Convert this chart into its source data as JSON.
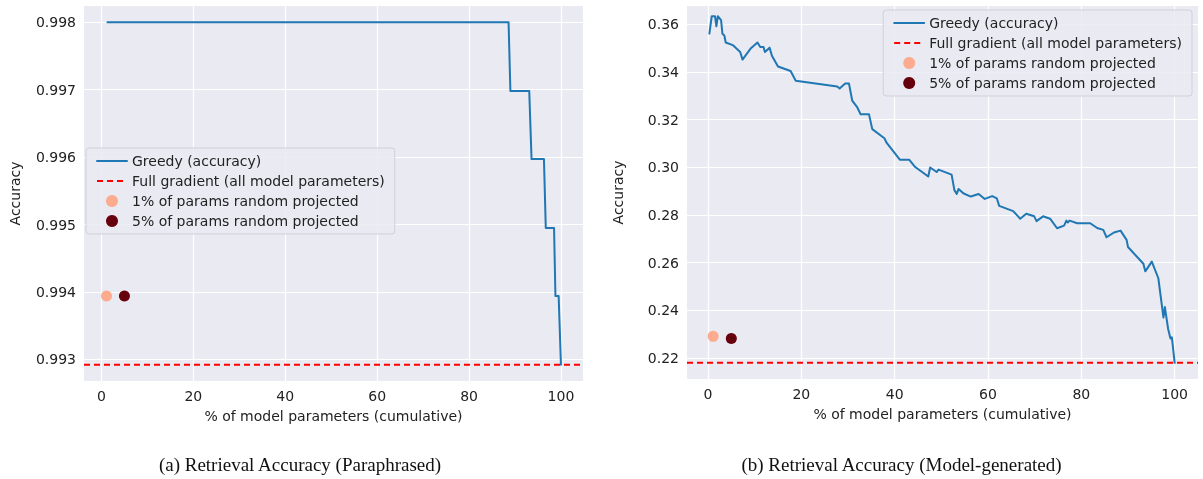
{
  "chart_data": [
    {
      "type": "line",
      "title": "(a) Retrieval Accuracy (Paraphrased)",
      "xlabel": "% of model parameters (cumulative)",
      "ylabel": "Accuracy",
      "xlim": [
        -3.8,
        104.8
      ],
      "xticks": [
        0,
        20,
        40,
        60,
        80,
        100
      ],
      "ylim": [
        0.99268,
        0.99824
      ],
      "yticks": [
        0.993,
        0.994,
        0.995,
        0.996,
        0.997,
        0.998
      ],
      "grid": true,
      "legend": "center left",
      "series": [
        {
          "name": "Greedy (accuracy)",
          "color": "#1f77b4",
          "marker": "none",
          "line_style": "solid",
          "x": [
            1.3,
            88.6,
            89.0,
            93.1,
            93.6,
            96.3,
            96.7,
            98.5,
            98.8,
            99.5,
            100
          ],
          "values": [
            0.998,
            0.998,
            0.99698,
            0.99698,
            0.99597,
            0.99597,
            0.99495,
            0.99495,
            0.99394,
            0.99394,
            0.99292
          ]
        },
        {
          "name": "1% of params random projected",
          "type": "scatter",
          "color": "#fcab8f",
          "marker": "circle",
          "x": [
            1.1
          ],
          "values": [
            0.99394
          ]
        },
        {
          "name": "5% of params random projected",
          "type": "scatter",
          "color": "#67000d",
          "marker": "circle",
          "x": [
            5.0
          ],
          "values": [
            0.99394
          ]
        }
      ],
      "ref_lines": [
        {
          "axis": "y",
          "value": 0.99292,
          "label": "Full gradient (all model parameters)",
          "color": "#ff0000",
          "line_style": "dashed"
        }
      ]
    },
    {
      "type": "line",
      "title": "(b) Retrieval Accuracy (Model-generated)",
      "xlabel": "% of model parameters (cumulative)",
      "ylabel": "Accuracy",
      "xlim": [
        -4.5,
        105
      ],
      "xticks": [
        0,
        20,
        40,
        60,
        80,
        100
      ],
      "ylim": [
        0.2111,
        0.3677
      ],
      "yticks": [
        {
          "value": 0.22,
          "label": "0.22"
        },
        {
          "value": 0.24,
          "label": "0.24"
        },
        {
          "value": 0.26,
          "label": "0.26"
        },
        {
          "value": 0.28,
          "label": "0.28"
        },
        {
          "value": 0.3,
          "label": "0.30"
        },
        {
          "value": 0.32,
          "label": "0.32"
        },
        {
          "value": 0.34,
          "label": "0.34"
        },
        {
          "value": 0.36,
          "label": "0.36"
        }
      ],
      "grid": true,
      "legend": "top right",
      "series": [
        {
          "name": "Greedy (accuracy)",
          "color": "#1f77b4",
          "marker": "none",
          "line_style": "solid",
          "x": [
            0.3,
            0.8,
            1.5,
            1.8,
            2.1,
            2.8,
            3.1,
            3.5,
            3.8,
            5.3,
            6.9,
            7.4,
            9.2,
            10.6,
            11.2,
            11.9,
            12.2,
            13.2,
            13.7,
            15.0,
            17.7,
            18.8,
            27.7,
            28.2,
            29.4,
            30.2,
            30.9,
            32.0,
            32.7,
            34.5,
            35.2,
            37.8,
            38.3,
            39.6,
            41.1,
            43.1,
            44.4,
            47.2,
            47.6,
            49.0,
            49.4,
            52.2,
            52.8,
            53.3,
            53.7,
            54.7,
            56.3,
            58.0,
            59.3,
            60.9,
            61.9,
            62.4,
            65.4,
            66.9,
            68.2,
            69.9,
            70.4,
            71.8,
            73.3,
            74.8,
            76.3,
            76.8,
            77.1,
            77.5,
            79.1,
            81.9,
            83.4,
            84.7,
            85.4,
            87.0,
            88.4,
            89.7,
            90.0,
            93.3,
            93.7,
            95.1,
            96.5,
            97.6,
            97.9,
            98.6,
            99.1,
            99.4,
            100.0
          ],
          "values": [
            0.3561,
            0.3634,
            0.3634,
            0.3592,
            0.3634,
            0.3618,
            0.356,
            0.3553,
            0.3524,
            0.3513,
            0.3484,
            0.3452,
            0.35,
            0.3524,
            0.3505,
            0.3505,
            0.3484,
            0.3502,
            0.3468,
            0.3423,
            0.3404,
            0.3363,
            0.3339,
            0.3331,
            0.3352,
            0.3352,
            0.328,
            0.3251,
            0.3222,
            0.3222,
            0.316,
            0.3122,
            0.3102,
            0.307,
            0.3032,
            0.3032,
            0.3001,
            0.2961,
            0.2999,
            0.298,
            0.299,
            0.2969,
            0.2904,
            0.2888,
            0.2909,
            0.2891,
            0.2877,
            0.2888,
            0.2867,
            0.2879,
            0.2869,
            0.2838,
            0.2816,
            0.2784,
            0.2805,
            0.2794,
            0.2774,
            0.2794,
            0.2784,
            0.2744,
            0.2755,
            0.2776,
            0.2768,
            0.2776,
            0.2765,
            0.2765,
            0.2745,
            0.2737,
            0.2706,
            0.2726,
            0.2734,
            0.2695,
            0.2665,
            0.2595,
            0.2563,
            0.2604,
            0.2534,
            0.2369,
            0.2413,
            0.2321,
            0.2281,
            0.2286,
            0.2179
          ]
        },
        {
          "name": "1% of params random projected",
          "type": "scatter",
          "color": "#fcab8f",
          "marker": "circle",
          "x": [
            1.1
          ],
          "values": [
            0.229
          ]
        },
        {
          "name": "5% of params random projected",
          "type": "scatter",
          "color": "#67000d",
          "marker": "circle",
          "x": [
            5.0
          ],
          "values": [
            0.2281
          ]
        }
      ],
      "ref_lines": [
        {
          "axis": "y",
          "value": 0.2179,
          "label": "Full gradient (all model parameters)",
          "color": "#ff0000",
          "line_style": "dashed"
        }
      ]
    }
  ]
}
